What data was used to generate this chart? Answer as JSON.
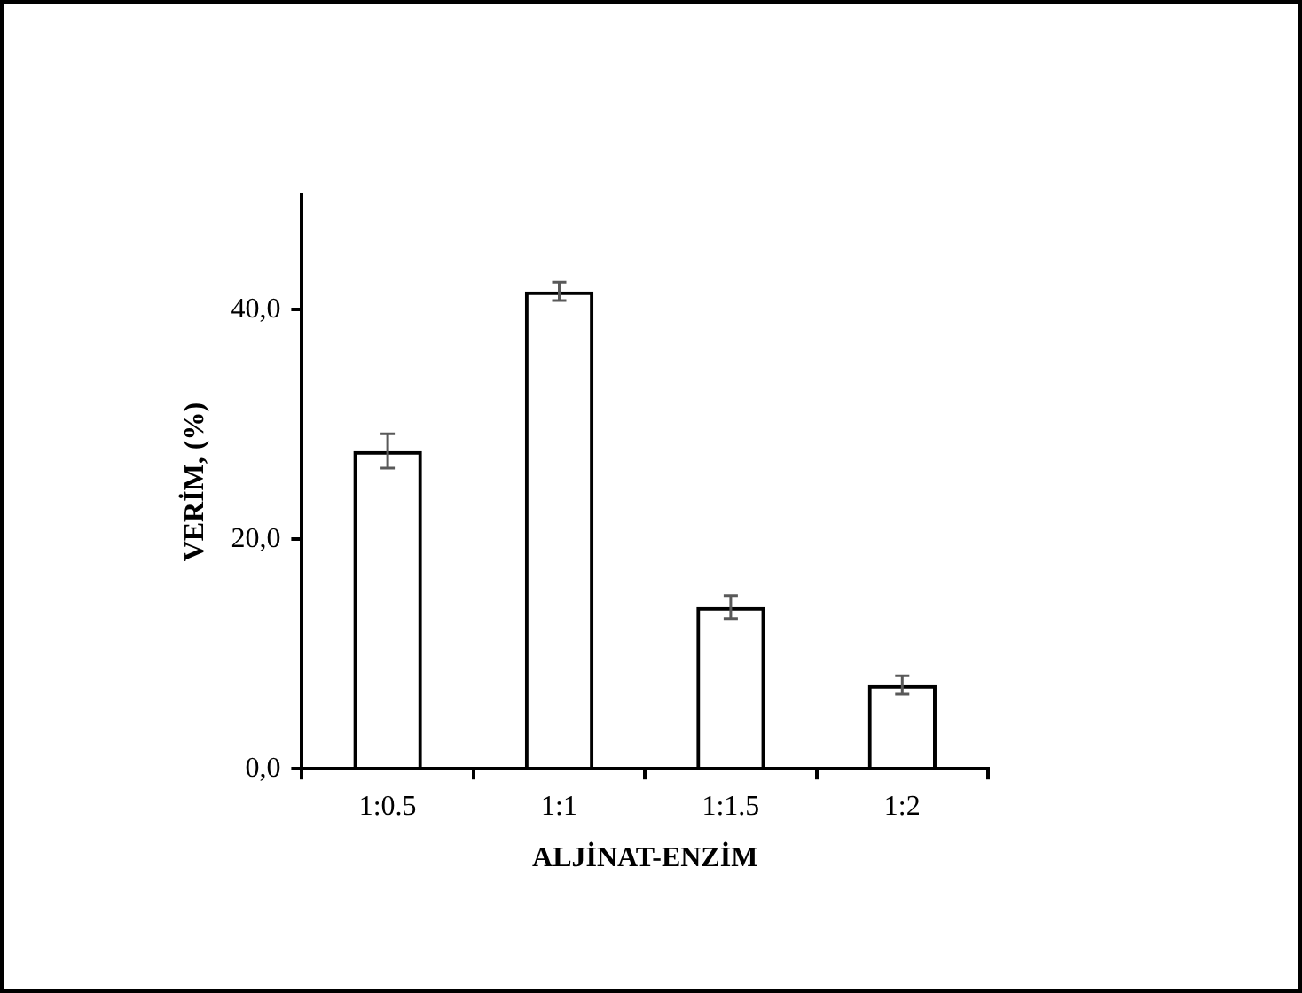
{
  "chart_data": {
    "type": "bar",
    "xlabel": "ALJİNAT-ENZİM",
    "ylabel": "VERİM, (%)",
    "categories": [
      "1:0.5",
      "1:1",
      "1:1.5",
      "1:2"
    ],
    "values": [
      27.7,
      41.6,
      14.1,
      7.3
    ],
    "errors": [
      1.5,
      0.8,
      1.0,
      0.8
    ],
    "color": "#000000",
    "ylim": [
      0,
      50
    ],
    "yticks": [
      {
        "value": 0,
        "label": "0,0"
      },
      {
        "value": 20,
        "label": "20,0"
      },
      {
        "value": 40,
        "label": "40,0"
      }
    ],
    "grid": false,
    "legend": false
  }
}
